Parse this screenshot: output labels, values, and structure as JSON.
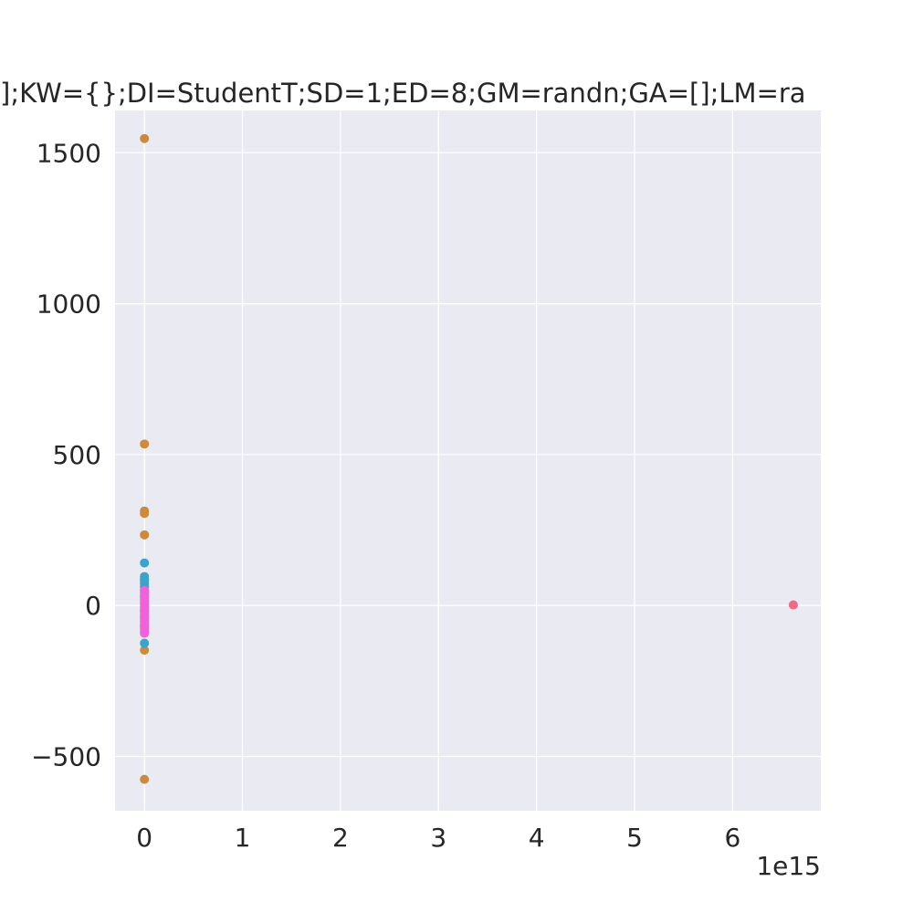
{
  "chart_data": {
    "type": "scatter",
    "title": "];KW={};DI=StudentT;SD=1;ED=8;GM=randn;GA=[];LM=ra",
    "xlabel": "",
    "ylabel": "",
    "x_offset_text": "1e15",
    "xlim": [
      -0.3,
      6.9
    ],
    "ylim": [
      -680,
      1640
    ],
    "x_scale": 1000000000000000.0,
    "xticks": [
      0,
      1,
      2,
      3,
      4,
      5,
      6
    ],
    "xtick_labels": [
      "0",
      "1",
      "2",
      "3",
      "4",
      "5",
      "6"
    ],
    "yticks": [
      -500,
      0,
      500,
      1000,
      1500
    ],
    "ytick_labels": [
      "−500",
      "0",
      "500",
      "1000",
      "1500"
    ],
    "grid": true,
    "background": "#eaeaf2",
    "series": [
      {
        "color": "#ee6a86",
        "points": [
          [
            6.62,
            2
          ]
        ]
      },
      {
        "color": "#cc8b3a",
        "points": [
          [
            0,
            1547
          ],
          [
            0,
            535
          ],
          [
            0,
            313
          ],
          [
            0,
            305
          ],
          [
            0,
            234
          ],
          [
            0,
            -148
          ],
          [
            0,
            -576
          ],
          [
            0,
            30
          ],
          [
            0,
            -20
          ]
        ]
      },
      {
        "color": "#3ba3cc",
        "points": [
          [
            0,
            141
          ],
          [
            0,
            96
          ],
          [
            0,
            88
          ],
          [
            0,
            80
          ],
          [
            0,
            72
          ],
          [
            0,
            62
          ],
          [
            0,
            50
          ],
          [
            0,
            -125
          ],
          [
            0,
            -70
          ],
          [
            0,
            -40
          ]
        ]
      },
      {
        "color": "#f062d9",
        "points": [
          [
            0,
            50
          ],
          [
            0,
            42
          ],
          [
            0,
            34
          ],
          [
            0,
            26
          ],
          [
            0,
            18
          ],
          [
            0,
            10
          ],
          [
            0,
            2
          ],
          [
            0,
            -6
          ],
          [
            0,
            -14
          ],
          [
            0,
            -22
          ],
          [
            0,
            -30
          ],
          [
            0,
            -38
          ],
          [
            0,
            -46
          ],
          [
            0,
            -54
          ],
          [
            0,
            -62
          ],
          [
            0,
            -70
          ],
          [
            0,
            -78
          ],
          [
            0,
            -86
          ],
          [
            0,
            -92
          ]
        ]
      }
    ]
  }
}
